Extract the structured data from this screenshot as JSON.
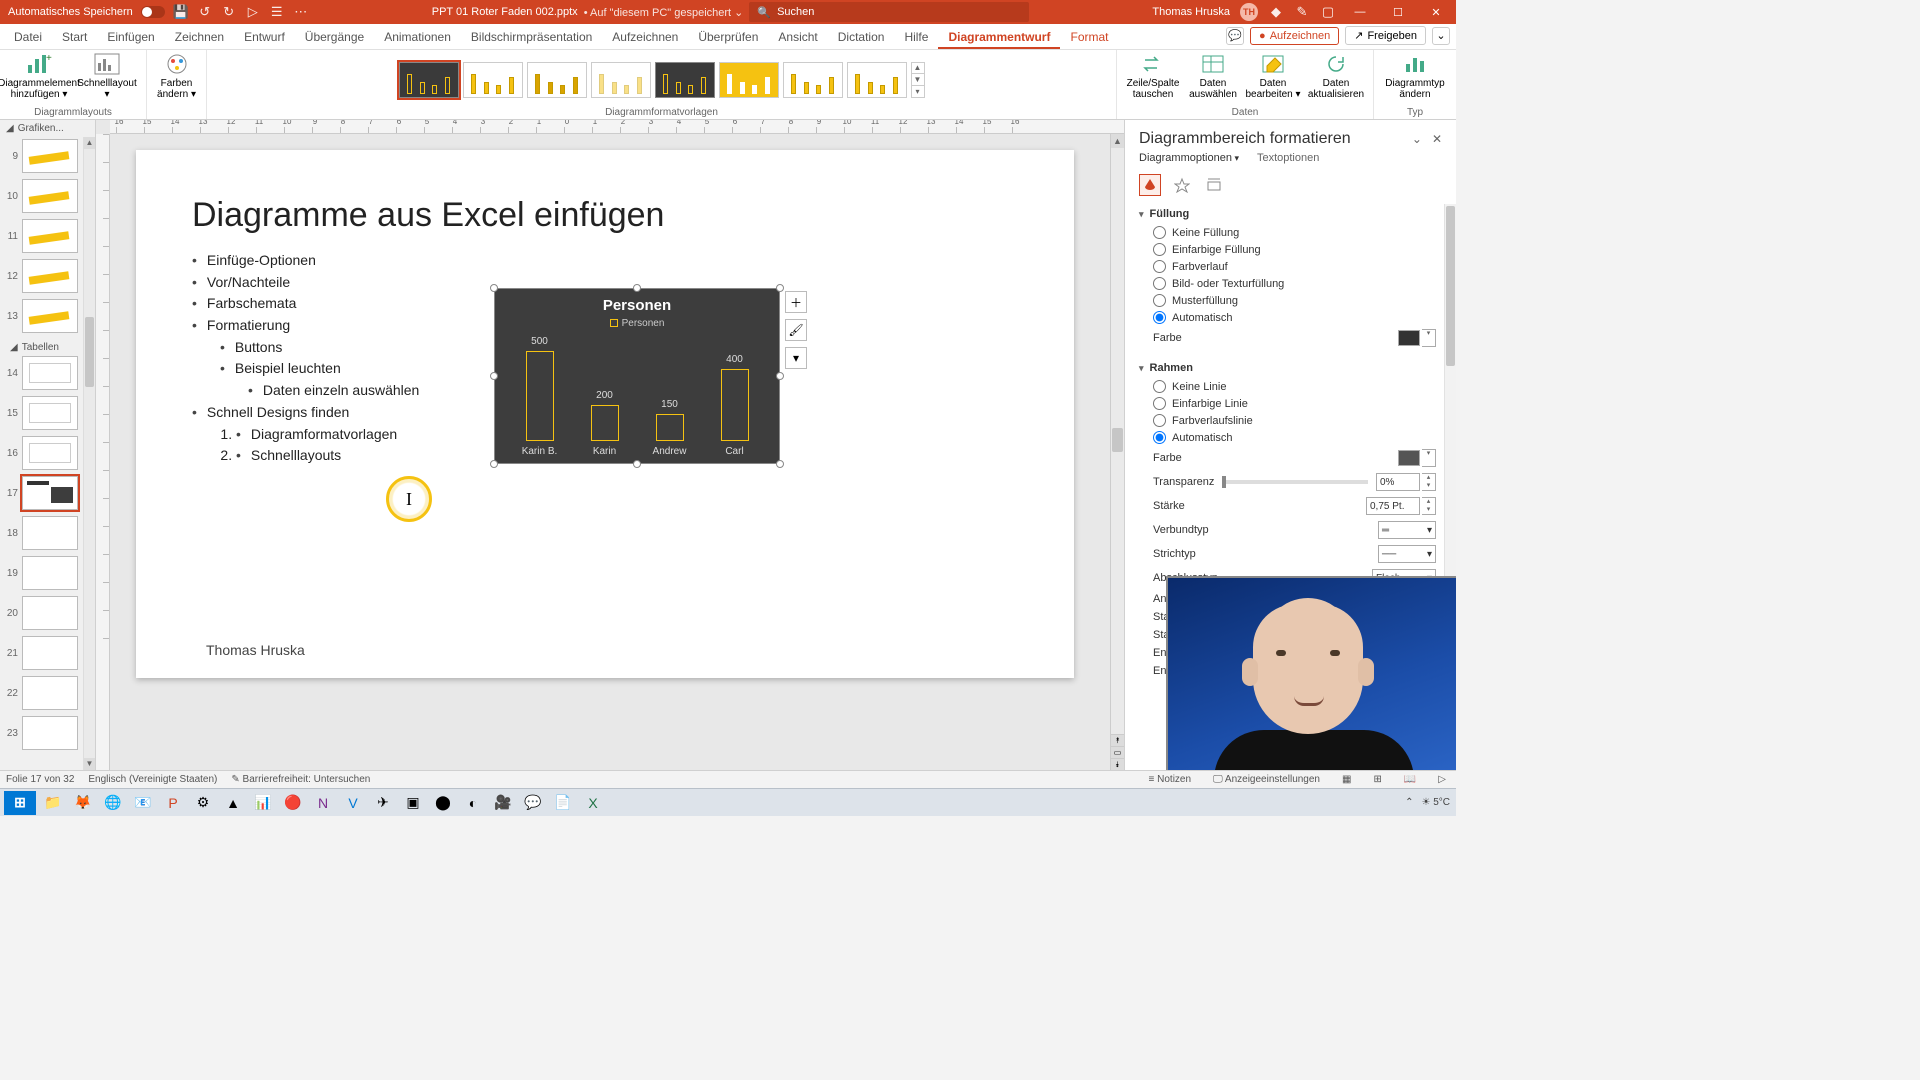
{
  "title_bar": {
    "autosave_label": "Automatisches Speichern",
    "filename": "PPT 01 Roter Faden 002.pptx",
    "saved_hint": "• Auf \"diesem PC\" gespeichert ⌄",
    "search_placeholder": "Suchen",
    "user_name": "Thomas Hruska",
    "user_initials": "TH"
  },
  "ribbon_tabs": {
    "items": [
      "Datei",
      "Start",
      "Einfügen",
      "Zeichnen",
      "Entwurf",
      "Übergänge",
      "Animationen",
      "Bildschirmpräsentation",
      "Aufzeichnen",
      "Überprüfen",
      "Ansicht",
      "Dictation",
      "Hilfe",
      "Diagrammentwurf",
      "Format"
    ],
    "active": "Diagrammentwurf",
    "record_btn": "Aufzeichnen",
    "share_btn": "Freigeben"
  },
  "ribbon": {
    "layouts_label": "Diagrammlayouts",
    "styles_label": "Diagrammformatvorlagen",
    "data_label": "Daten",
    "type_label": "Typ",
    "btn_add_element": "Diagrammelement hinzufügen ▾",
    "btn_quicklayout": "Schnelllayout ▾",
    "btn_colors": "Farben ändern ▾",
    "btn_swap": "Zeile/Spalte tauschen",
    "btn_select_data": "Daten auswählen",
    "btn_edit_data": "Daten bearbeiten ▾",
    "btn_refresh": "Daten aktualisieren",
    "btn_change_type": "Diagrammtyp ändern"
  },
  "slide_panel": {
    "section1": "Grafiken...",
    "section2": "Tabellen",
    "thumbs": [
      {
        "n": "9"
      },
      {
        "n": "10"
      },
      {
        "n": "11"
      },
      {
        "n": "12"
      },
      {
        "n": "13"
      },
      {
        "n": "14"
      },
      {
        "n": "15"
      },
      {
        "n": "16"
      },
      {
        "n": "17",
        "sel": true
      },
      {
        "n": "18"
      },
      {
        "n": "19"
      },
      {
        "n": "20"
      },
      {
        "n": "21"
      },
      {
        "n": "22"
      },
      {
        "n": "23"
      }
    ]
  },
  "ruler_h": [
    "16",
    "15",
    "14",
    "13",
    "12",
    "11",
    "10",
    "9",
    "8",
    "7",
    "6",
    "5",
    "4",
    "3",
    "2",
    "1",
    "0",
    "1",
    "2",
    "3",
    "4",
    "5",
    "6",
    "7",
    "8",
    "9",
    "10",
    "11",
    "12",
    "13",
    "14",
    "15",
    "16"
  ],
  "ruler_v": [
    "9",
    "8",
    "7",
    "6",
    "5",
    "4",
    "3",
    "2",
    "1",
    "0",
    "1",
    "2",
    "3",
    "4",
    "5",
    "6",
    "7",
    "8",
    "9"
  ],
  "slide": {
    "title": "Diagramme aus Excel einfügen",
    "bullets": {
      "b1": "Einfüge-Optionen",
      "b2": "Vor/Nachteile",
      "b3": "Farbschemata",
      "b4": "Formatierung",
      "b4a": "Buttons",
      "b4b": "Beispiel leuchten",
      "b4b1": "Daten einzeln auswählen",
      "b5": "Schnell Designs finden",
      "b5_1": "Diagramformatvorlagen",
      "b5_2": "Schnelllayouts"
    },
    "footer": "Thomas Hruska",
    "highlight_glyph": "I"
  },
  "chart": {
    "type": "bar",
    "title": "Personen",
    "legend": "Personen",
    "bg": "#3d3d3d",
    "bar_border": "#f5c211",
    "text_color": "#dddddd",
    "max": 500,
    "categories": [
      "Karin B.",
      "Karin",
      "Andrew",
      "Carl"
    ],
    "values": [
      500,
      200,
      150,
      400
    ]
  },
  "format_pane": {
    "title": "Diagrammbereich formatieren",
    "tab_options": "Diagrammoptionen",
    "tab_text": "Textoptionen",
    "sec_fill": "Füllung",
    "fill_none": "Keine Füllung",
    "fill_solid": "Einfarbige Füllung",
    "fill_grad": "Farbverlauf",
    "fill_pic": "Bild- oder Texturfüllung",
    "fill_pat": "Musterfüllung",
    "fill_auto": "Automatisch",
    "color_label": "Farbe",
    "sec_border": "Rahmen",
    "line_none": "Keine Linie",
    "line_solid": "Einfarbige Linie",
    "line_grad": "Farbverlaufslinie",
    "line_auto": "Automatisch",
    "transp_label": "Transparenz",
    "transp_val": "0%",
    "width_label": "Stärke",
    "width_val": "0,75 Pt.",
    "compound_label": "Verbundtyp",
    "dash_label": "Strichtyp",
    "cap_label": "Abschlusstyp",
    "cap_val": "Flach",
    "join_label": "Ansc",
    "start_label": "Startp",
    "start2_label": "Startp",
    "end_label": "Endp",
    "end2_label": "Endp"
  },
  "status": {
    "slide_info": "Folie 17 von 32",
    "lang": "Englisch (Vereinigte Staaten)",
    "access": "Barrierefreiheit: Untersuchen",
    "notes": "Notizen",
    "display": "Anzeigeeinstellungen"
  },
  "taskbar": {
    "weather": "5°C"
  }
}
